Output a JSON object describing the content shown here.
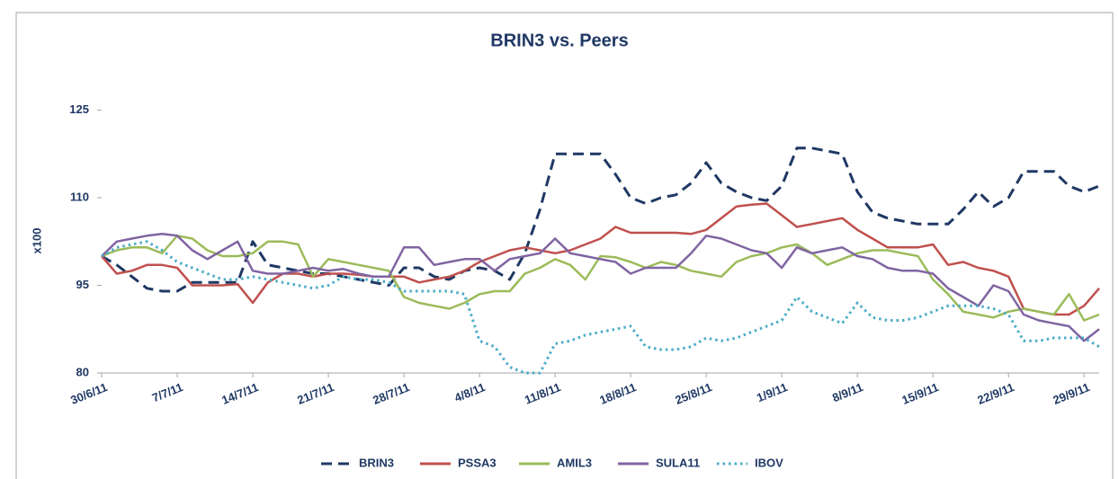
{
  "chart_data": {
    "type": "line",
    "title": "BRIN3 vs. Peers",
    "ylabel": "x100",
    "categories": [
      "30/6/11",
      null,
      null,
      null,
      null,
      "7/7/11",
      null,
      null,
      null,
      null,
      "14/7/11",
      null,
      null,
      null,
      null,
      "21/7/11",
      null,
      null,
      null,
      null,
      "28/7/11",
      null,
      null,
      null,
      null,
      "4/8/11",
      null,
      null,
      null,
      null,
      "11/8/11",
      null,
      null,
      null,
      null,
      "18/8/11",
      null,
      null,
      null,
      null,
      "25/8/11",
      null,
      null,
      null,
      null,
      "1/9/11",
      null,
      null,
      null,
      null,
      "8/9/11",
      null,
      null,
      null,
      null,
      "15/9/11",
      null,
      null,
      null,
      null,
      "22/9/11",
      null,
      null,
      null,
      null,
      "29/9/11",
      null
    ],
    "ylim": [
      80,
      130
    ],
    "yticks": [
      80,
      95,
      110,
      125
    ],
    "grid": false,
    "legend": "bottom",
    "series": [
      {
        "name": "BRIN3",
        "color": "#1f3864",
        "dash": "dashed",
        "values": [
          100,
          98.5,
          96.5,
          94.5,
          94,
          94,
          95.5,
          95.5,
          95.5,
          95.5,
          102.5,
          98.5,
          98,
          97.5,
          97,
          97,
          96.5,
          96,
          95.5,
          95,
          98,
          98,
          96.5,
          96,
          97.5,
          98,
          97.5,
          96,
          100.5,
          108,
          117.5,
          117.5,
          117.5,
          117.5,
          114,
          110,
          109,
          110,
          110.5,
          112.5,
          116,
          112.5,
          111,
          110,
          109.5,
          112,
          118.5,
          118.5,
          118,
          117.5,
          111,
          107.5,
          106.5,
          106,
          105.5,
          105.5,
          105.5,
          108,
          111,
          108.5,
          110,
          114.5,
          114.5,
          114.5,
          112,
          111,
          112
        ]
      },
      {
        "name": "PSSA3",
        "color": "#c0504d",
        "dash": "solid",
        "values": [
          100,
          97,
          97.5,
          98.5,
          98.5,
          98,
          95,
          95,
          95,
          95.2,
          92,
          95.5,
          97,
          97,
          96.5,
          97,
          97,
          96.8,
          96.5,
          96.5,
          96.5,
          95.5,
          96,
          96.5,
          97.5,
          99,
          100,
          101,
          101.5,
          101,
          100.5,
          101,
          102,
          103,
          105,
          104,
          104,
          104,
          104,
          103.8,
          104.5,
          106.5,
          108.5,
          108.8,
          109,
          107,
          105,
          105.5,
          106,
          106.5,
          104.5,
          103,
          101.5,
          101.5,
          101.5,
          102,
          98.5,
          99,
          98,
          97.5,
          96.5,
          91,
          90.5,
          90,
          90,
          91.5,
          94.5
        ]
      },
      {
        "name": "AMIL3",
        "color": "#9bbb59",
        "dash": "solid",
        "values": [
          100,
          101,
          101.5,
          101.5,
          100.5,
          103.5,
          103,
          101,
          100,
          100,
          100.5,
          102.5,
          102.5,
          102,
          96.5,
          99.5,
          99,
          98.5,
          98,
          97.5,
          93,
          92,
          91.5,
          91,
          92,
          93.5,
          94,
          94,
          97,
          98,
          99.5,
          98.5,
          96,
          100,
          99.8,
          99,
          98,
          99,
          98.5,
          97.5,
          97,
          96.5,
          99,
          100,
          100.5,
          101.5,
          102,
          100.5,
          98.5,
          99.5,
          100.5,
          101,
          101,
          100.5,
          100,
          96,
          93.5,
          90.5,
          90,
          89.5,
          90.5,
          91,
          90.5,
          90,
          93.5,
          89,
          90
        ]
      },
      {
        "name": "SULA11",
        "color": "#8064a2",
        "dash": "solid",
        "values": [
          100,
          102.5,
          103,
          103.5,
          103.8,
          103.5,
          101,
          99.5,
          101,
          102.5,
          97.5,
          97,
          97,
          97.5,
          98,
          97.5,
          97.8,
          97,
          96.5,
          96.5,
          101.5,
          101.5,
          98.5,
          99,
          99.5,
          99.5,
          97.5,
          99.5,
          100,
          100.5,
          103,
          100.5,
          100,
          99.5,
          99,
          97,
          98,
          98,
          98,
          100.5,
          103.5,
          103,
          102,
          101,
          100.5,
          98,
          101.5,
          100.5,
          101,
          101.5,
          100,
          99.5,
          98,
          97.5,
          97.5,
          97,
          94.5,
          93,
          91.5,
          95,
          94,
          90,
          89,
          88.5,
          88,
          85.5,
          87.5
        ]
      },
      {
        "name": "IBOV",
        "color": "#4bacc6",
        "dash": "dotted",
        "values": [
          100,
          101.5,
          102,
          102.5,
          101,
          99,
          98,
          97,
          96,
          96,
          96.5,
          96,
          95.5,
          95,
          94.5,
          95,
          96.5,
          96,
          96,
          95.5,
          94,
          94,
          94,
          94,
          93.5,
          85.5,
          84.5,
          81,
          80,
          80,
          85,
          85.5,
          86.5,
          87,
          87.5,
          88,
          84.5,
          84,
          84,
          84.5,
          86,
          85.5,
          86,
          87,
          88,
          89,
          93,
          90.5,
          89.5,
          88.5,
          92,
          89.5,
          89,
          89,
          89.5,
          90.5,
          91.5,
          91.5,
          91.5,
          91,
          90,
          85.5,
          85.5,
          86,
          86,
          86,
          84.5
        ]
      }
    ]
  }
}
